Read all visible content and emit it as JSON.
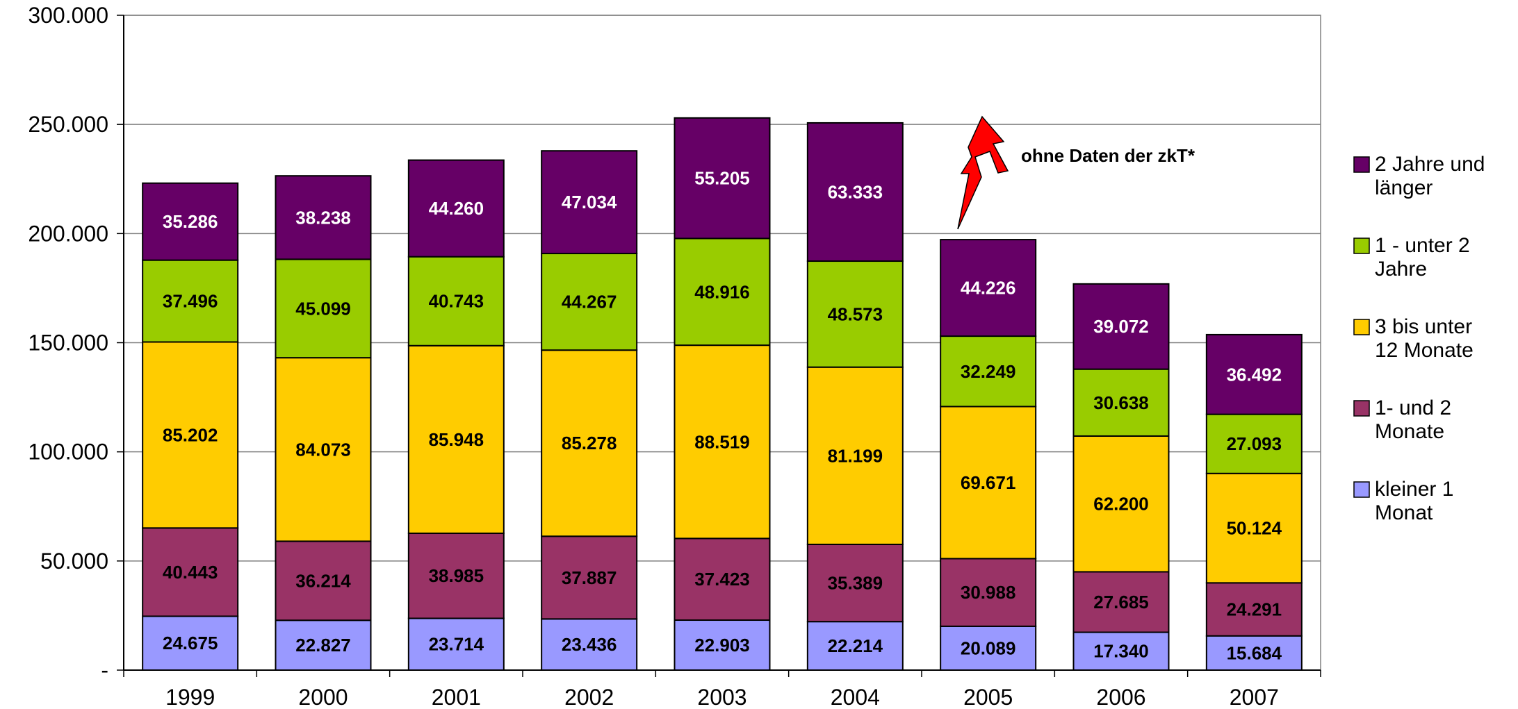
{
  "chart_data": {
    "type": "bar",
    "stacked": true,
    "categories": [
      "1999",
      "2000",
      "2001",
      "2002",
      "2003",
      "2004",
      "2005",
      "2006",
      "2007"
    ],
    "series": [
      {
        "name": "kleiner 1 Monat",
        "color": "#9999FF",
        "label_color": "#000000",
        "values": [
          24675,
          22827,
          23714,
          23436,
          22903,
          22214,
          20089,
          17340,
          15684
        ],
        "labels": [
          "24.675",
          "22.827",
          "23.714",
          "23.436",
          "22.903",
          "22.214",
          "20.089",
          "17.340",
          "15.684"
        ]
      },
      {
        "name": "1- und 2 Monate",
        "color": "#993366",
        "label_color": "#000000",
        "values": [
          40443,
          36214,
          38985,
          37887,
          37423,
          35389,
          30988,
          27685,
          24291
        ],
        "labels": [
          "40.443",
          "36.214",
          "38.985",
          "37.887",
          "37.423",
          "35.389",
          "30.988",
          "27.685",
          "24.291"
        ]
      },
      {
        "name": "3 bis unter 12 Monate",
        "color": "#FFCC00",
        "label_color": "#000000",
        "values": [
          85202,
          84073,
          85948,
          85278,
          88519,
          81199,
          69671,
          62200,
          50124
        ],
        "labels": [
          "85.202",
          "84.073",
          "85.948",
          "85.278",
          "88.519",
          "81.199",
          "69.671",
          "62.200",
          "50.124"
        ]
      },
      {
        "name": "1 - unter 2 Jahre",
        "color": "#99CC00",
        "label_color": "#000000",
        "values": [
          37496,
          45099,
          40743,
          44267,
          48916,
          48573,
          32249,
          30638,
          27093
        ],
        "labels": [
          "37.496",
          "45.099",
          "40.743",
          "44.267",
          "48.916",
          "48.573",
          "32.249",
          "30.638",
          "27.093"
        ]
      },
      {
        "name": "2 Jahre und länger",
        "color": "#660066",
        "label_color": "#FFFFFF",
        "values": [
          35286,
          38238,
          44260,
          47034,
          55205,
          63333,
          44226,
          39072,
          36492
        ],
        "labels": [
          "35.286",
          "38.238",
          "44.260",
          "47.034",
          "55.205",
          "63.333",
          "44.226",
          "39.072",
          "36.492"
        ]
      }
    ],
    "legend": {
      "position": "right",
      "order": [
        4,
        3,
        2,
        1,
        0
      ],
      "entries": [
        {
          "line1": "2 Jahre und",
          "line2": "länger"
        },
        {
          "line1": "1 - unter 2",
          "line2": "Jahre"
        },
        {
          "line1": "3 bis unter",
          "line2": "12 Monate"
        },
        {
          "line1": "1- und 2",
          "line2": "Monate"
        },
        {
          "line1": "kleiner 1",
          "line2": "Monat"
        }
      ]
    },
    "y_ticks": [
      0,
      50000,
      100000,
      150000,
      200000,
      250000,
      300000
    ],
    "y_tick_labels": [
      "-",
      "50.000",
      "100.000",
      "150.000",
      "200.000",
      "250.000",
      "300.000"
    ],
    "ylim": [
      0,
      300000
    ],
    "grid": true,
    "title": "",
    "xlabel": "",
    "ylabel": "",
    "annotation": {
      "text": "ohne Daten der zkT*",
      "category": "2005",
      "marker": "lightning-bolt",
      "color": "#FF0000"
    }
  }
}
